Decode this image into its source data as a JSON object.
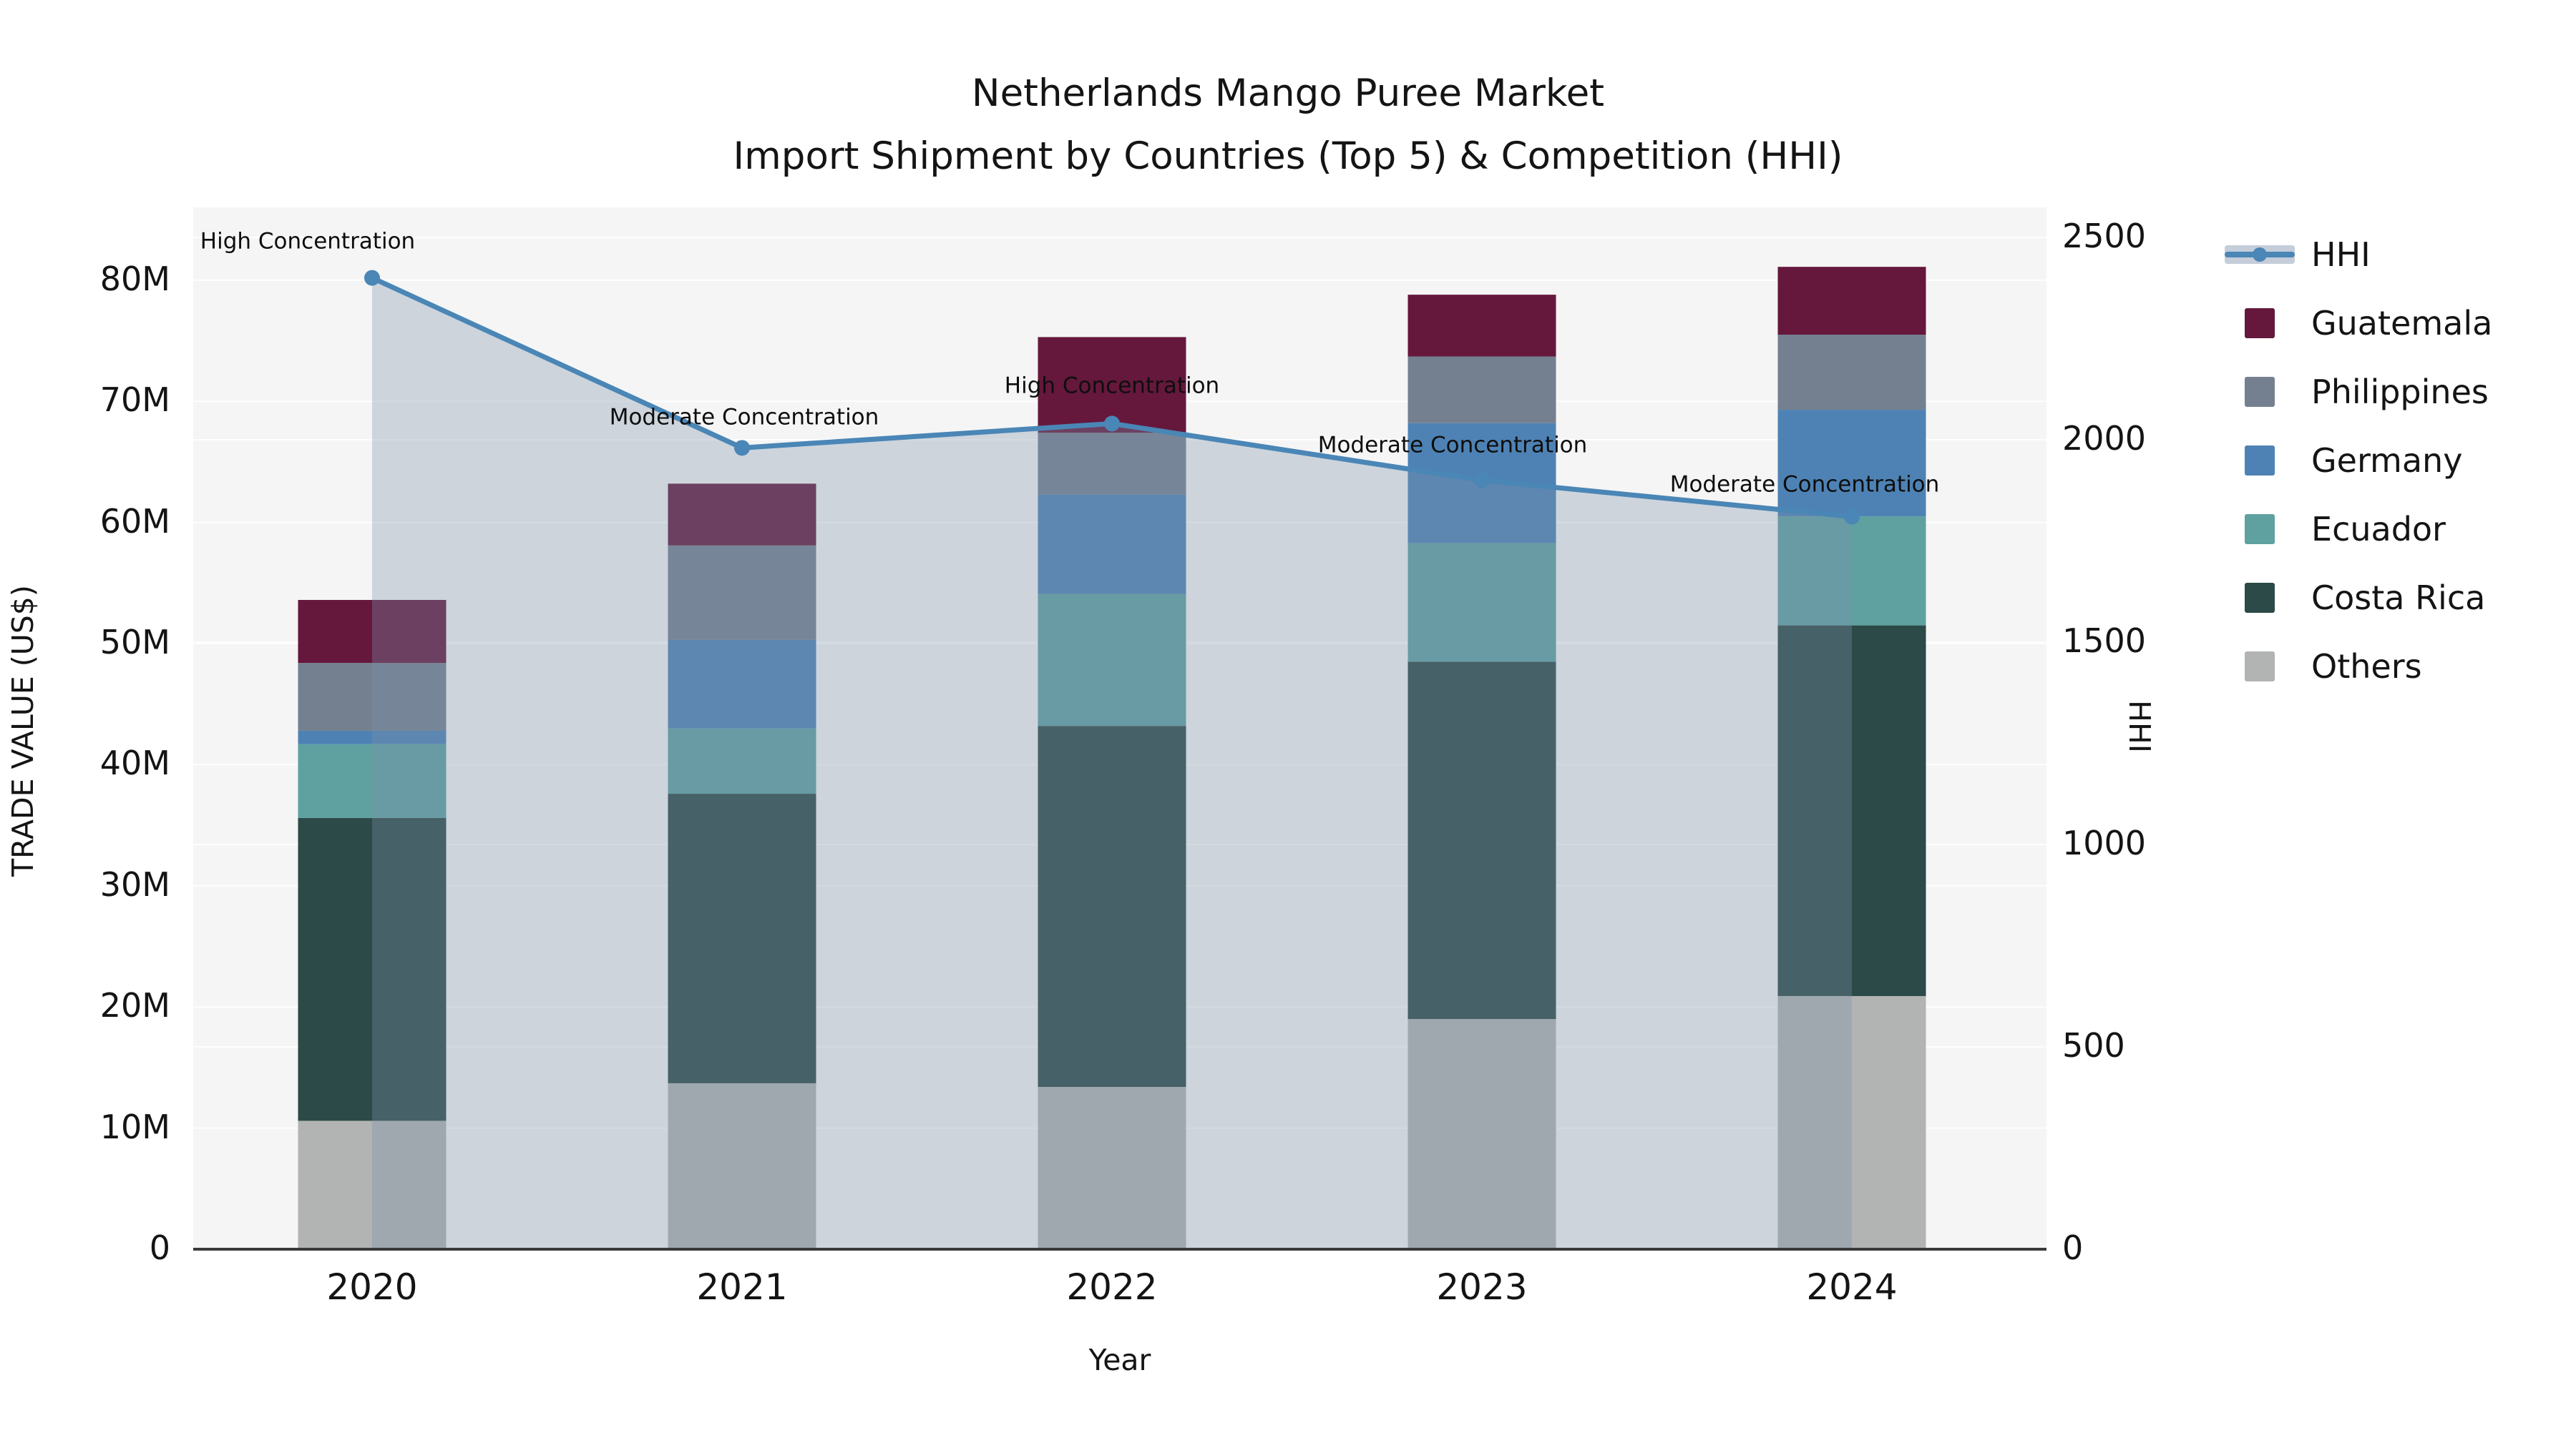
{
  "title": {
    "line1": "Netherlands Mango Puree Market",
    "line2": "Import Shipment by Countries (Top 5) & Competition (HHI)"
  },
  "axes": {
    "left_label": "TRADE VALUE (US$)",
    "right_label": "HHI",
    "x_label": "Year",
    "left_ticks": [
      "0",
      "10M",
      "20M",
      "30M",
      "40M",
      "50M",
      "60M",
      "70M",
      "80M"
    ],
    "left_tick_values": [
      0,
      10,
      20,
      30,
      40,
      50,
      60,
      70,
      80
    ],
    "right_ticks": [
      "0",
      "500",
      "1000",
      "1500",
      "2000",
      "2500"
    ],
    "right_tick_values": [
      0,
      500,
      1000,
      1500,
      2000,
      2500
    ]
  },
  "chart_data": {
    "type": "bar",
    "subtype": "stacked-bars-with-line-overlay",
    "title": "Netherlands Mango Puree Market — Import Shipment by Countries (Top 5) & Competition (HHI)",
    "xlabel": "Year",
    "ylabel_left": "TRADE VALUE (US$)",
    "ylabel_right": "HHI",
    "categories": [
      "2020",
      "2021",
      "2022",
      "2023",
      "2024"
    ],
    "ylim_left_millions": [
      0,
      86
    ],
    "ylim_right_hhi": [
      0,
      2570
    ],
    "grid": "on",
    "legend_position": "right-outside",
    "stack_bottom_to_top": [
      "Others",
      "Costa Rica",
      "Ecuador",
      "Germany",
      "Philippines",
      "Guatemala"
    ],
    "series": [
      {
        "name": "Guatemala",
        "color": "#65183C",
        "values_millions": [
          5.2,
          5.1,
          7.9,
          5.1,
          5.6
        ]
      },
      {
        "name": "Philippines",
        "color": "#74808F",
        "values_millions": [
          5.6,
          7.8,
          5.1,
          5.5,
          6.2
        ]
      },
      {
        "name": "Germany",
        "color": "#4E82B4",
        "values_millions": [
          1.1,
          7.3,
          8.2,
          9.9,
          8.8
        ]
      },
      {
        "name": "Ecuador",
        "color": "#5FA0A0",
        "values_millions": [
          6.1,
          5.4,
          10.9,
          9.8,
          9.0
        ]
      },
      {
        "name": "Costa Rica",
        "color": "#2C4A47",
        "values_millions": [
          25.0,
          23.9,
          29.8,
          29.5,
          30.6
        ]
      },
      {
        "name": "Others",
        "color": "#B1B4B2",
        "values_millions": [
          10.6,
          13.7,
          13.4,
          19.0,
          20.9
        ]
      }
    ],
    "bar_totals_millions": [
      53.6,
      63.2,
      75.3,
      78.8,
      81.1
    ],
    "hhi_line": {
      "name": "HHI",
      "values": [
        2400,
        1980,
        2040,
        1900,
        1810
      ],
      "line_color": "#4A86B6",
      "area_fill_color": "rgba(125,145,170,0.33)",
      "marker": "circle"
    },
    "annotations": [
      {
        "text": "High Concentration",
        "x": 430,
        "y": 338
      },
      {
        "text": "Moderate Concentration",
        "x": 1040,
        "y": 584
      },
      {
        "text": "High Concentration",
        "x": 1554,
        "y": 540
      },
      {
        "text": "Moderate Concentration",
        "x": 2030,
        "y": 623
      },
      {
        "text": "Moderate Concentration",
        "x": 2522,
        "y": 678
      }
    ]
  },
  "legend": {
    "items": [
      "HHI",
      "Guatemala",
      "Philippines",
      "Germany",
      "Ecuador",
      "Costa Rica",
      "Others"
    ]
  },
  "style": {
    "plot_bg": "#f5f5f5",
    "gridline_color": "rgba(255,255,255,0.9)",
    "axis_line_color": "#3a3a3a",
    "text_color": "#141414"
  }
}
